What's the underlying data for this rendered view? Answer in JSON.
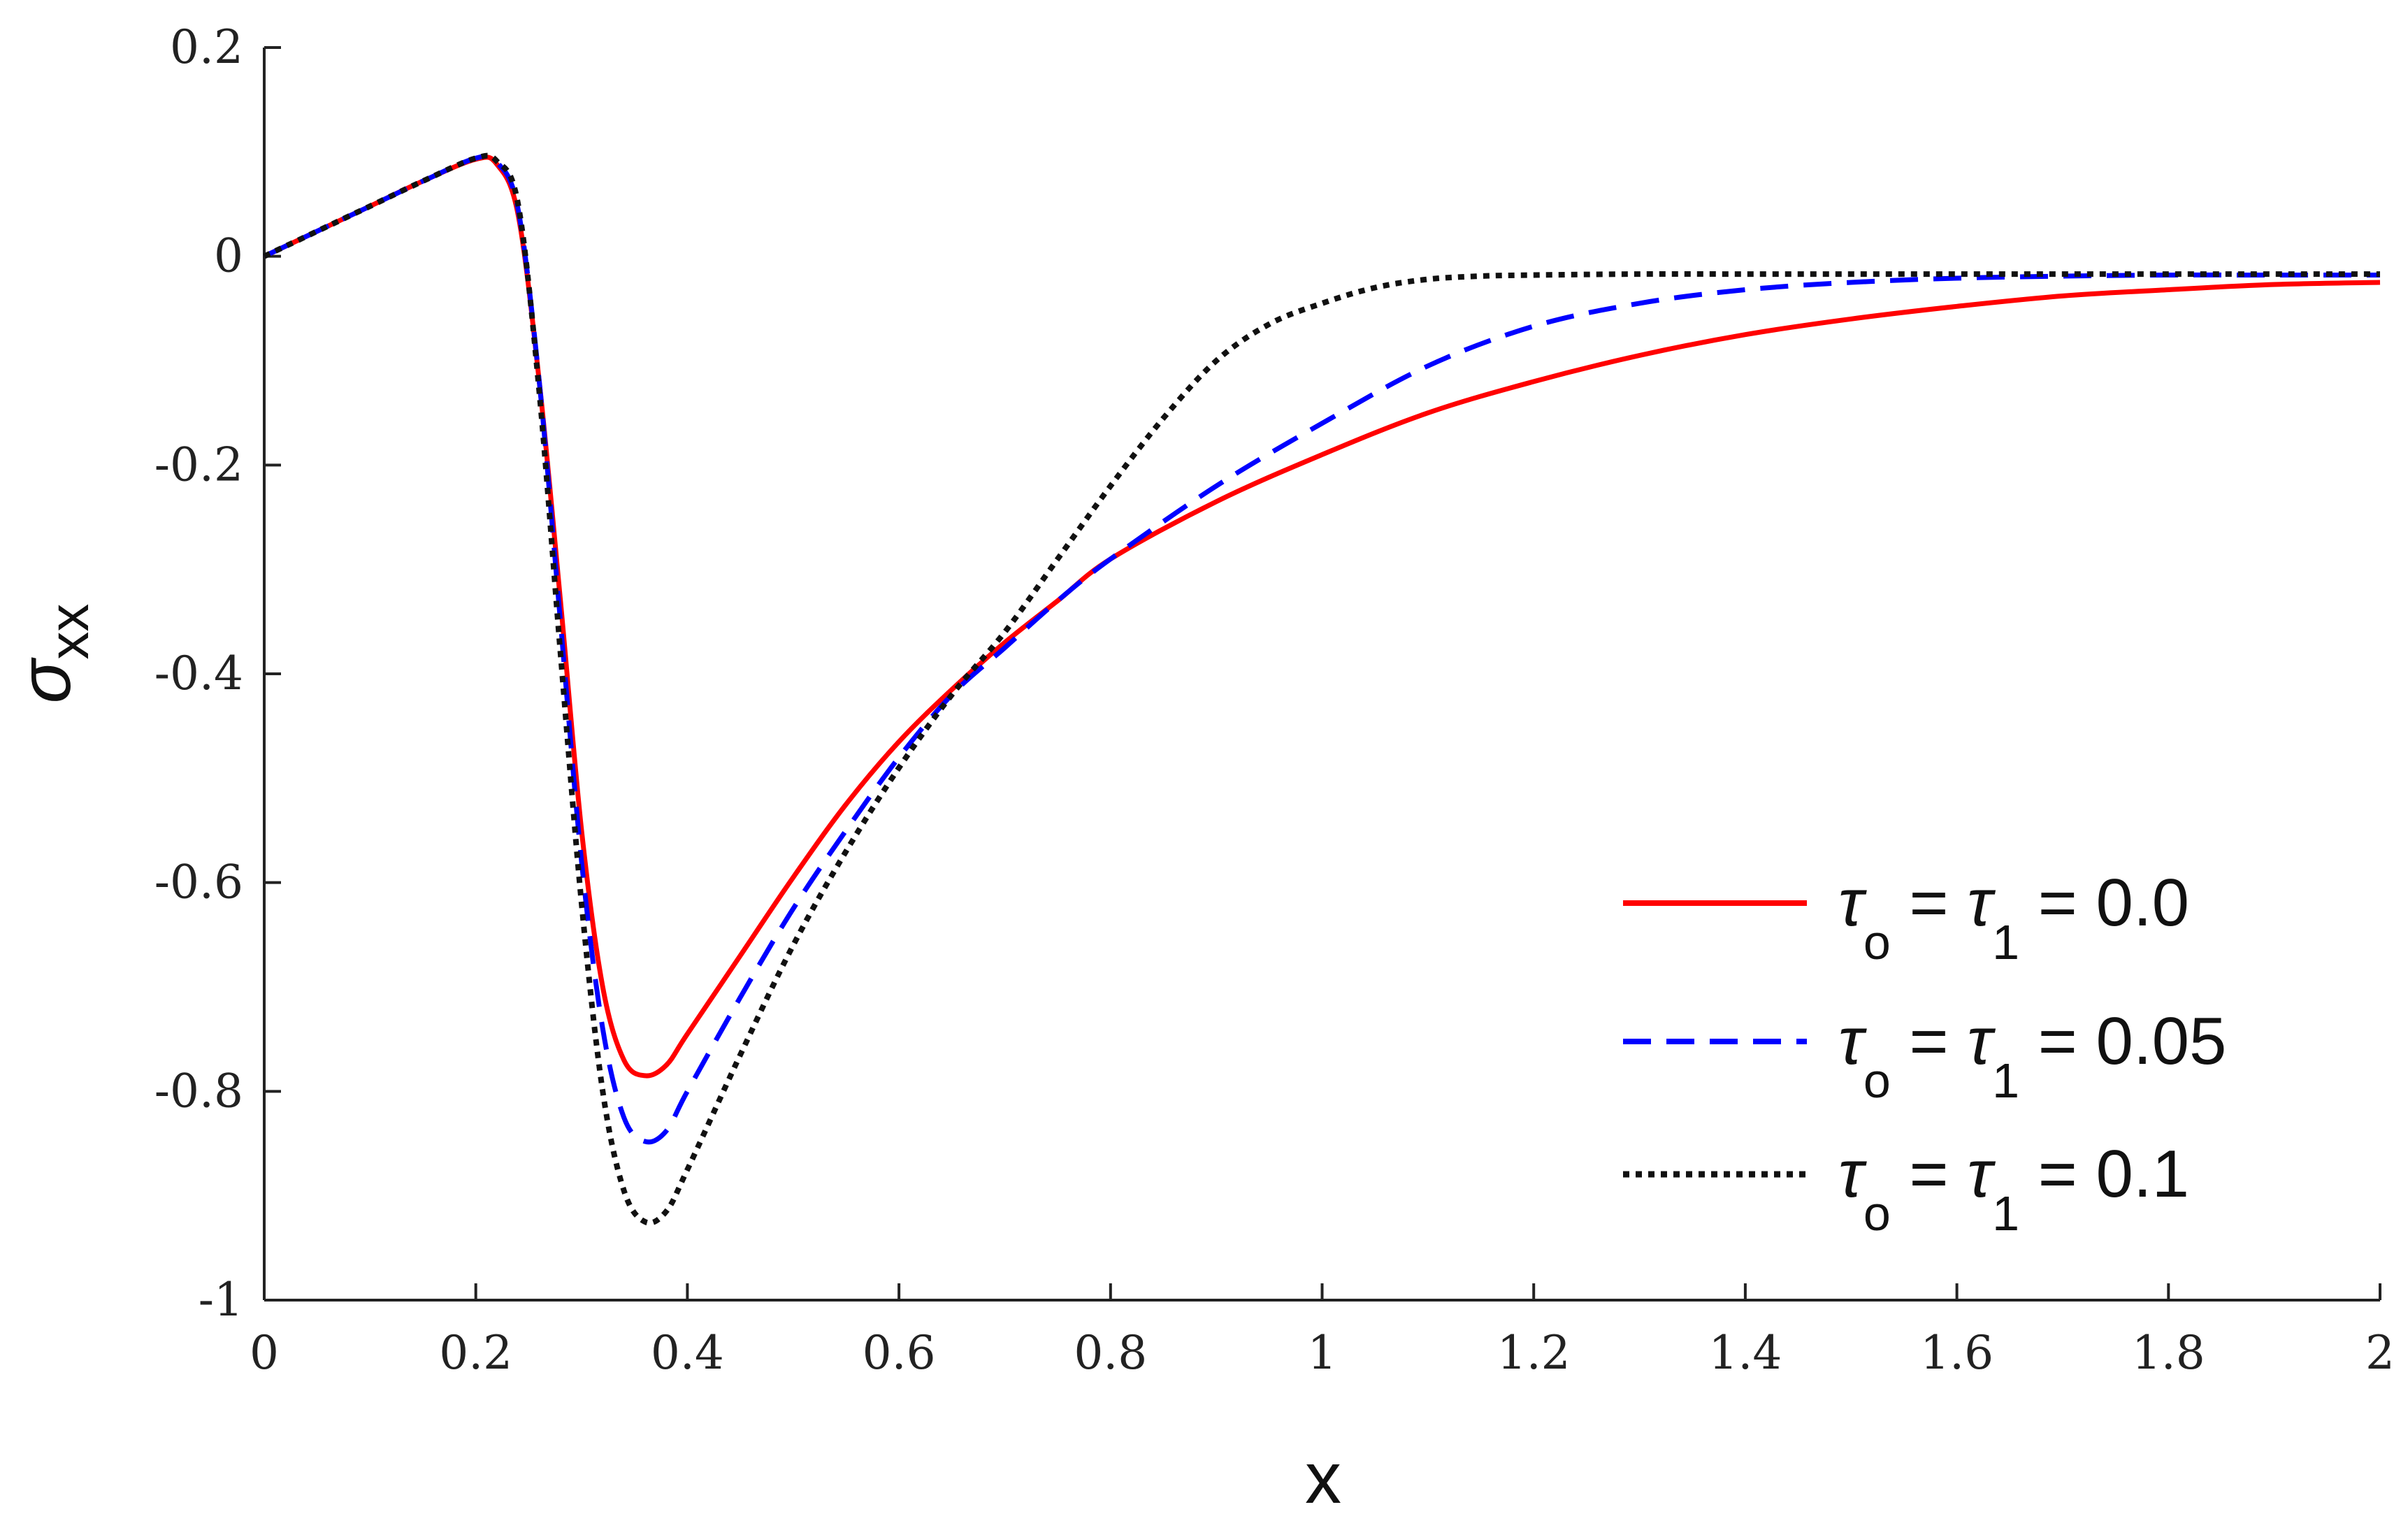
{
  "chart_data": {
    "type": "line",
    "xlabel": "x",
    "ylabel": {
      "symbol": "σ",
      "subscript": "xx"
    },
    "xlim": [
      0,
      2
    ],
    "ylim": [
      -1,
      0.2
    ],
    "xticks": [
      0,
      0.2,
      0.4,
      0.6,
      0.8,
      1,
      1.2,
      1.4,
      1.6,
      1.8,
      2
    ],
    "xtick_labels": [
      "0",
      "0.2",
      "0.4",
      "0.6",
      "0.8",
      "1",
      "1.2",
      "1.4",
      "1.6",
      "1.8",
      "2"
    ],
    "yticks": [
      0.2,
      0,
      -0.2,
      -0.4,
      -0.6,
      -0.8,
      -1
    ],
    "ytick_labels": [
      "0.2",
      "0",
      "-0.2",
      "-0.4",
      "-0.6",
      "-0.8",
      "-1"
    ],
    "grid": false,
    "legend_position": "bottom-right",
    "series": [
      {
        "name": "τo = τ1 = 0.0",
        "legend": {
          "tau": "τ",
          "sub0": "o",
          "sub1": "1",
          "eq": "=",
          "value": "= 0.0"
        },
        "color": "#ff0000",
        "style": "solid",
        "x": [
          0,
          0.05,
          0.1,
          0.15,
          0.2,
          0.22,
          0.24,
          0.26,
          0.28,
          0.3,
          0.32,
          0.34,
          0.36,
          0.38,
          0.4,
          0.45,
          0.5,
          0.55,
          0.6,
          0.65,
          0.7,
          0.75,
          0.8,
          0.9,
          1.0,
          1.1,
          1.2,
          1.3,
          1.4,
          1.5,
          1.6,
          1.7,
          1.8,
          1.9,
          2.0
        ],
        "y": [
          0,
          0.024,
          0.048,
          0.072,
          0.093,
          0.088,
          0.04,
          -0.12,
          -0.33,
          -0.55,
          -0.7,
          -0.77,
          -0.785,
          -0.775,
          -0.745,
          -0.67,
          -0.595,
          -0.525,
          -0.465,
          -0.415,
          -0.37,
          -0.33,
          -0.29,
          -0.235,
          -0.19,
          -0.15,
          -0.12,
          -0.095,
          -0.075,
          -0.06,
          -0.048,
          -0.038,
          -0.032,
          -0.027,
          -0.025
        ]
      },
      {
        "name": "τo = τ1 = 0.05",
        "legend": {
          "tau": "τ",
          "sub0": "o",
          "sub1": "1",
          "eq": "=",
          "value": "= 0.05"
        },
        "color": "#0000ff",
        "style": "dashed",
        "x": [
          0,
          0.05,
          0.1,
          0.15,
          0.2,
          0.22,
          0.24,
          0.26,
          0.28,
          0.3,
          0.32,
          0.34,
          0.36,
          0.38,
          0.4,
          0.45,
          0.5,
          0.55,
          0.6,
          0.65,
          0.7,
          0.75,
          0.8,
          0.9,
          1.0,
          1.1,
          1.2,
          1.3,
          1.4,
          1.5,
          1.6,
          1.7,
          1.8,
          1.9,
          2.0
        ],
        "y": [
          0,
          0.024,
          0.048,
          0.072,
          0.094,
          0.09,
          0.045,
          -0.12,
          -0.35,
          -0.58,
          -0.74,
          -0.825,
          -0.848,
          -0.838,
          -0.8,
          -0.71,
          -0.625,
          -0.55,
          -0.48,
          -0.42,
          -0.375,
          -0.33,
          -0.29,
          -0.22,
          -0.16,
          -0.105,
          -0.067,
          -0.045,
          -0.032,
          -0.025,
          -0.021,
          -0.019,
          -0.018,
          -0.018,
          -0.018
        ]
      },
      {
        "name": "τo = τ1 = 0.1",
        "legend": {
          "tau": "τ",
          "sub0": "o",
          "sub1": "1",
          "eq": "=",
          "value": "= 0.1"
        },
        "color": "#111111",
        "style": "dotted",
        "x": [
          0,
          0.05,
          0.1,
          0.15,
          0.2,
          0.22,
          0.24,
          0.26,
          0.28,
          0.3,
          0.32,
          0.34,
          0.36,
          0.38,
          0.4,
          0.45,
          0.5,
          0.55,
          0.6,
          0.65,
          0.7,
          0.75,
          0.8,
          0.85,
          0.9,
          0.95,
          1.0,
          1.05,
          1.1,
          1.15,
          1.2,
          1.3,
          1.4,
          1.5,
          1.6,
          1.7,
          1.8,
          1.9,
          2.0
        ],
        "y": [
          0,
          0.024,
          0.048,
          0.072,
          0.094,
          0.091,
          0.05,
          -0.13,
          -0.38,
          -0.62,
          -0.8,
          -0.895,
          -0.925,
          -0.915,
          -0.875,
          -0.765,
          -0.66,
          -0.57,
          -0.49,
          -0.42,
          -0.36,
          -0.29,
          -0.22,
          -0.155,
          -0.1,
          -0.065,
          -0.045,
          -0.03,
          -0.022,
          -0.019,
          -0.018,
          -0.017,
          -0.017,
          -0.017,
          -0.017,
          -0.017,
          -0.017,
          -0.017,
          -0.017
        ]
      }
    ]
  }
}
